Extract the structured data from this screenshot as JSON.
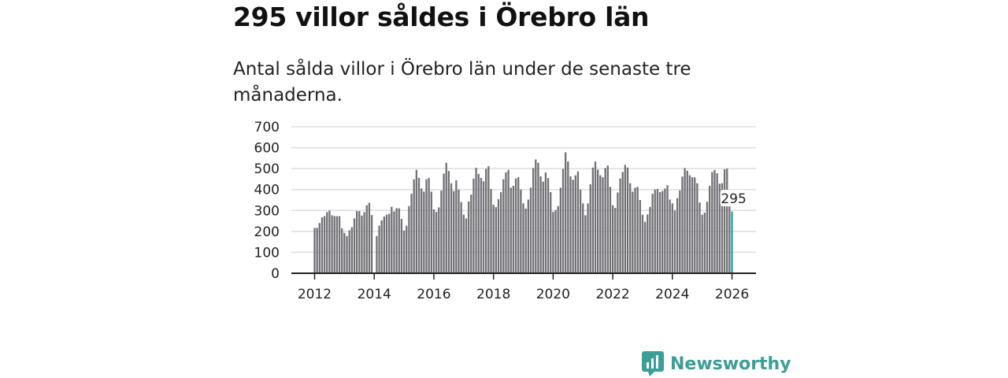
{
  "title": "295 villor såldes i Örebro län",
  "subtitle": "Antal sålda villor i Örebro län under de senaste tre månaderna.",
  "brand": "Newsworthy",
  "colors": {
    "bar": "#717075",
    "highlight": "#1ba39c",
    "brand": "#3b9e97",
    "grid": "#dddddd",
    "axis": "#222222"
  },
  "chart_data": {
    "type": "bar",
    "title": "Antal sålda villor i Örebro län",
    "xlabel": "",
    "ylabel": "",
    "ylim": [
      0,
      700
    ],
    "yticks": [
      0,
      100,
      200,
      300,
      400,
      500,
      600,
      700
    ],
    "xticks": [
      "2012",
      "2014",
      "2016",
      "2018",
      "2020",
      "2022",
      "2024",
      "2026"
    ],
    "start": "2012-01",
    "frequency": "monthly",
    "grid": true,
    "highlight_label": "295",
    "values": [
      217,
      217,
      240,
      267,
      273,
      292,
      300,
      277,
      273,
      273,
      273,
      215,
      193,
      178,
      205,
      220,
      262,
      297,
      297,
      276,
      292,
      325,
      337,
      278,
      null,
      178,
      228,
      253,
      271,
      280,
      284,
      318,
      295,
      311,
      310,
      260,
      204,
      227,
      321,
      380,
      449,
      494,
      456,
      405,
      390,
      449,
      456,
      390,
      305,
      293,
      315,
      395,
      476,
      528,
      489,
      430,
      393,
      444,
      400,
      340,
      280,
      262,
      343,
      376,
      452,
      504,
      475,
      456,
      440,
      499,
      512,
      403,
      327,
      316,
      354,
      388,
      449,
      482,
      494,
      409,
      418,
      453,
      459,
      400,
      334,
      309,
      352,
      409,
      503,
      544,
      528,
      463,
      438,
      482,
      455,
      388,
      293,
      302,
      321,
      409,
      499,
      578,
      534,
      463,
      447,
      468,
      487,
      400,
      334,
      277,
      334,
      425,
      505,
      534,
      495,
      468,
      459,
      503,
      515,
      413,
      325,
      312,
      386,
      453,
      484,
      518,
      505,
      430,
      390,
      409,
      413,
      350,
      280,
      246,
      281,
      317,
      380,
      400,
      403,
      388,
      393,
      405,
      421,
      352,
      334,
      300,
      359,
      396,
      462,
      503,
      490,
      468,
      459,
      458,
      430,
      338,
      280,
      290,
      342,
      418,
      484,
      494,
      478,
      428,
      430,
      497,
      500,
      321,
      295
    ]
  }
}
